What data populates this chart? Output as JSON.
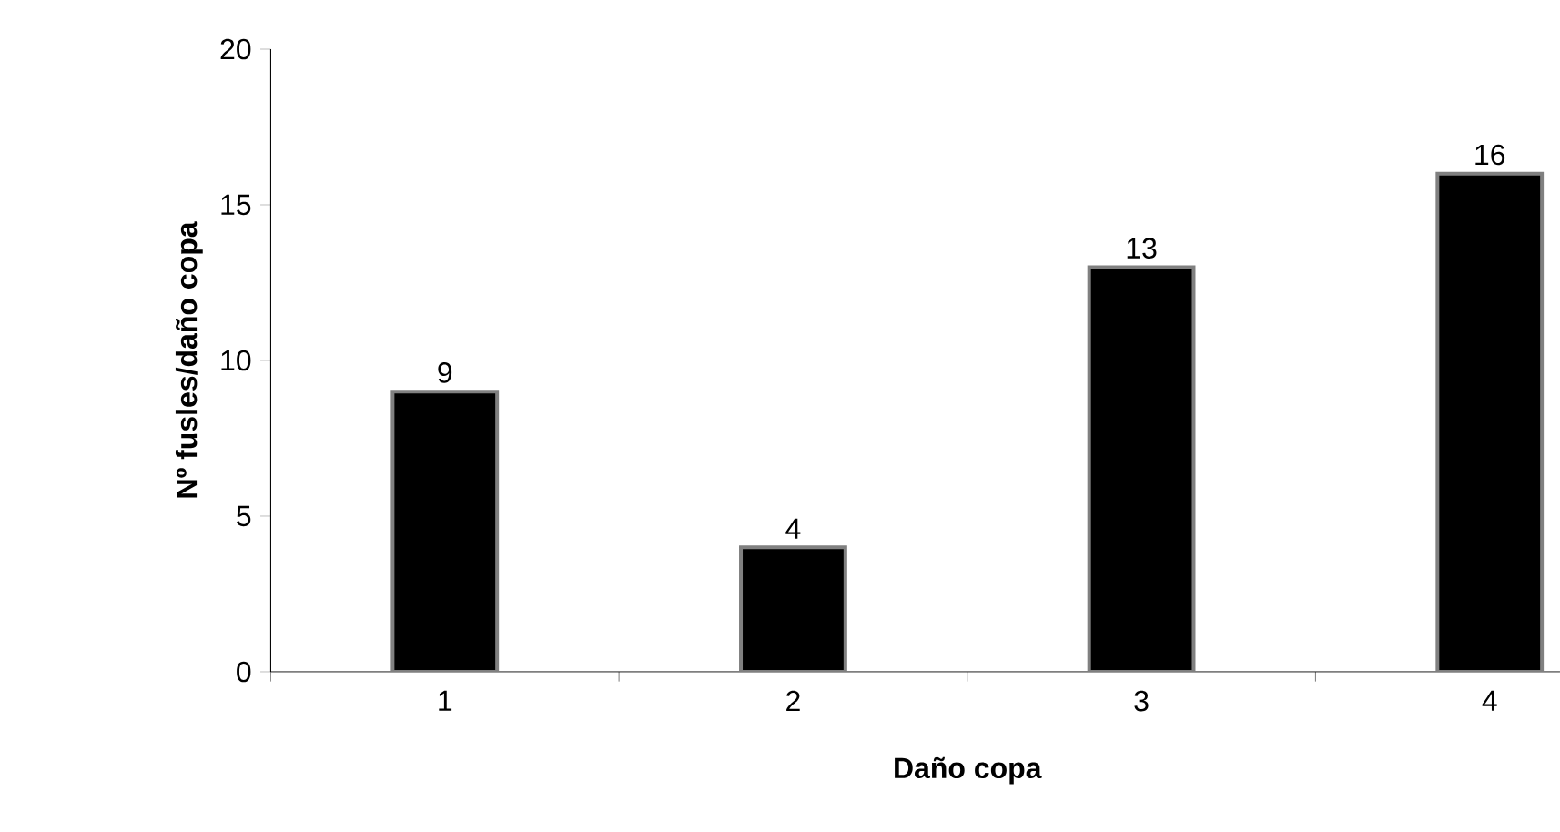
{
  "chart_data": {
    "type": "bar",
    "xlabel": "Daño copa",
    "ylabel": "Nº fusles/daño copa",
    "categories": [
      "1",
      "2",
      "3",
      "4"
    ],
    "values": [
      9,
      4,
      13,
      16
    ],
    "color": "#000000",
    "ylim": [
      0,
      20
    ],
    "yticks": [
      0,
      5,
      10,
      15,
      20
    ],
    "data_labels": true
  }
}
